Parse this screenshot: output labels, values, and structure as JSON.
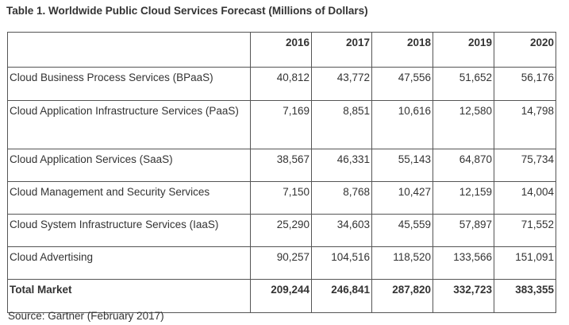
{
  "title": "Table 1. Worldwide Public Cloud Services Forecast (Millions of Dollars)",
  "table": {
    "corner": "",
    "years": [
      "2016",
      "2017",
      "2018",
      "2019",
      "2020"
    ],
    "rows": [
      {
        "label": "Cloud Business Process Services (BPaaS)",
        "values": [
          "40,812",
          "43,772",
          "47,556",
          "51,652",
          "56,176"
        ]
      },
      {
        "label": "Cloud Application Infrastructure Services (PaaS)",
        "values": [
          "7,169",
          "8,851",
          "10,616",
          "12,580",
          "14,798"
        ]
      },
      {
        "label": "Cloud Application Services (SaaS)",
        "values": [
          "38,567",
          "46,331",
          "55,143",
          "64,870",
          "75,734"
        ]
      },
      {
        "label": "Cloud Management and Security Services",
        "values": [
          "7,150",
          "8,768",
          "10,427",
          "12,159",
          "14,004"
        ]
      },
      {
        "label": "Cloud System Infrastructure Services (IaaS)",
        "values": [
          "25,290",
          "34,603",
          "45,559",
          "57,897",
          "71,552"
        ]
      },
      {
        "label": "Cloud Advertising",
        "values": [
          "90,257",
          "104,516",
          "118,520",
          "133,566",
          "151,091"
        ]
      }
    ],
    "total": {
      "label": "Total Market",
      "values": [
        "209,244",
        "246,841",
        "287,820",
        "332,723",
        "383,355"
      ]
    }
  },
  "source": "Source: Gartner (February 2017)",
  "colors": {
    "text": "#333333",
    "border": "#555555",
    "background": "#ffffff"
  }
}
